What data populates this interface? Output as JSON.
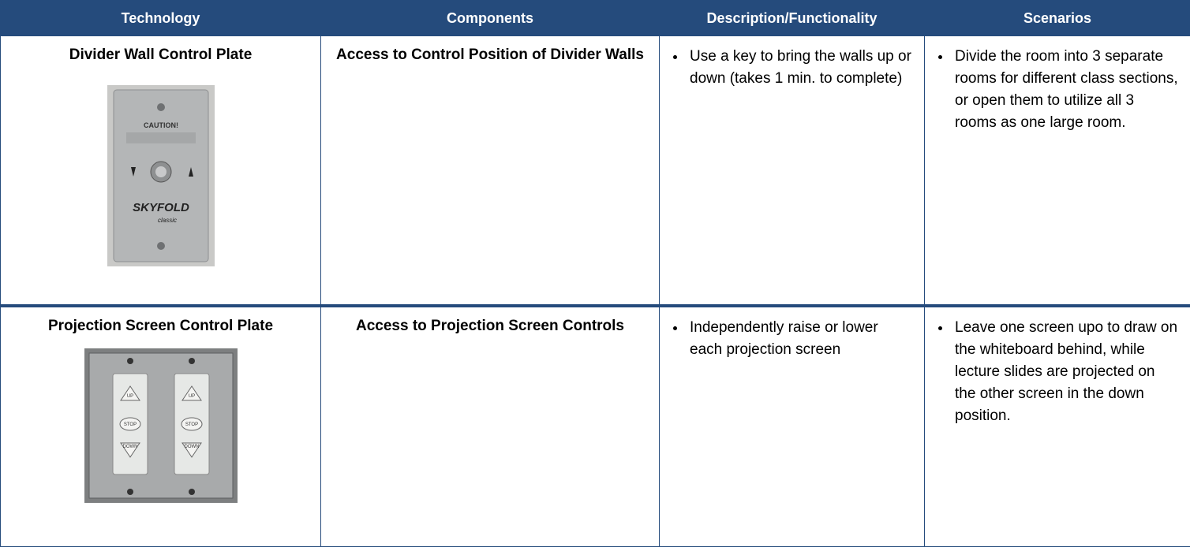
{
  "table": {
    "columns": [
      "Technology",
      "Components",
      "Description/Functionality",
      "Scenarios"
    ],
    "rows": [
      {
        "technology": "Divider Wall Control Plate",
        "image": {
          "caution": "CAUTION!",
          "brand": "SKYFOLD",
          "model": "classic"
        },
        "components": "Access to Control Position of Divider Walls",
        "description": [
          "Use a key to bring the walls up or down (takes 1 min. to complete)"
        ],
        "scenarios": [
          "Divide the room into 3 separate rooms for different class sections, or open them to utilize all 3 rooms as one large room."
        ]
      },
      {
        "technology": "Projection Screen Control Plate",
        "image": {
          "buttons": [
            "UP",
            "STOP",
            "DOWN"
          ]
        },
        "components": "Access to Projection Screen Controls",
        "description": [
          "Independently raise or lower each projection screen"
        ],
        "scenarios": [
          "Leave one screen upo to draw on the whiteboard behind, while lecture slides are projected on the other screen in the down position."
        ]
      }
    ]
  }
}
